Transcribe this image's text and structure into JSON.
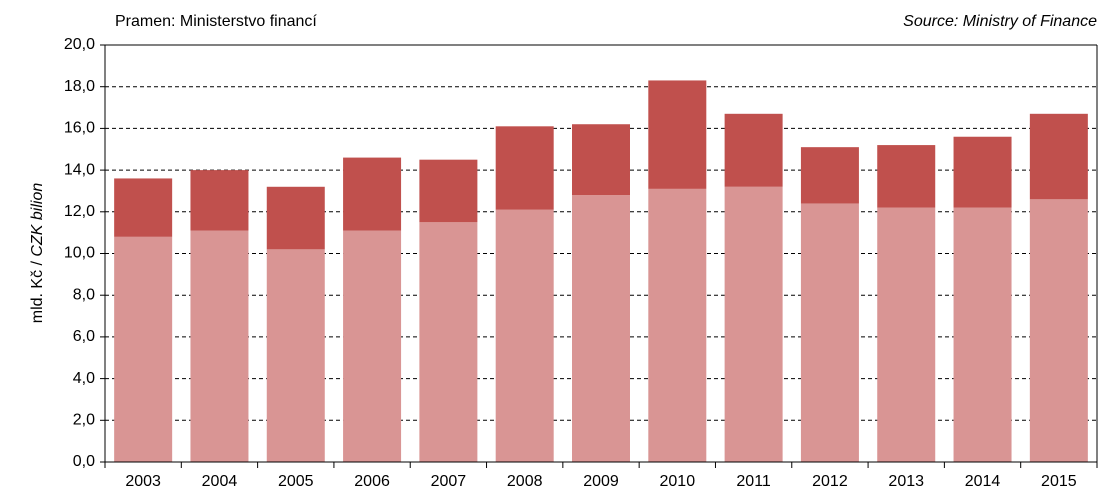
{
  "chart_data": {
    "type": "stacked_bar",
    "source_cs": "Pramen: Ministerstvo financí",
    "source_en": "Source: Ministry of Finance",
    "y_label_cs": "mld. Kč / ",
    "y_label_en": "CZK bilion",
    "categories": [
      "2003",
      "2004",
      "2005",
      "2006",
      "2007",
      "2008",
      "2009",
      "2010",
      "2011",
      "2012",
      "2013",
      "2014",
      "2015"
    ],
    "series": [
      {
        "color": "#d99594",
        "values": [
          10.8,
          11.1,
          10.2,
          11.1,
          11.5,
          12.1,
          12.8,
          13.1,
          13.2,
          12.4,
          12.2,
          12.2,
          12.6
        ]
      },
      {
        "color": "#c0504d",
        "values": [
          2.8,
          2.9,
          3.0,
          3.5,
          3.0,
          4.0,
          3.4,
          5.2,
          3.5,
          2.7,
          3.0,
          3.4,
          4.1
        ]
      }
    ],
    "ylim": [
      0,
      20
    ],
    "yticks": [
      {
        "value": 0,
        "label": "0,0"
      },
      {
        "value": 2,
        "label": "2,0"
      },
      {
        "value": 4,
        "label": "4,0"
      },
      {
        "value": 6,
        "label": "6,0"
      },
      {
        "value": 8,
        "label": "8,0"
      },
      {
        "value": 10,
        "label": "10,0"
      },
      {
        "value": 12,
        "label": "12,0"
      },
      {
        "value": 14,
        "label": "14,0"
      },
      {
        "value": 16,
        "label": "16,0"
      },
      {
        "value": 18,
        "label": "18,0"
      },
      {
        "value": 20,
        "label": "20,0"
      }
    ],
    "grid": true
  }
}
